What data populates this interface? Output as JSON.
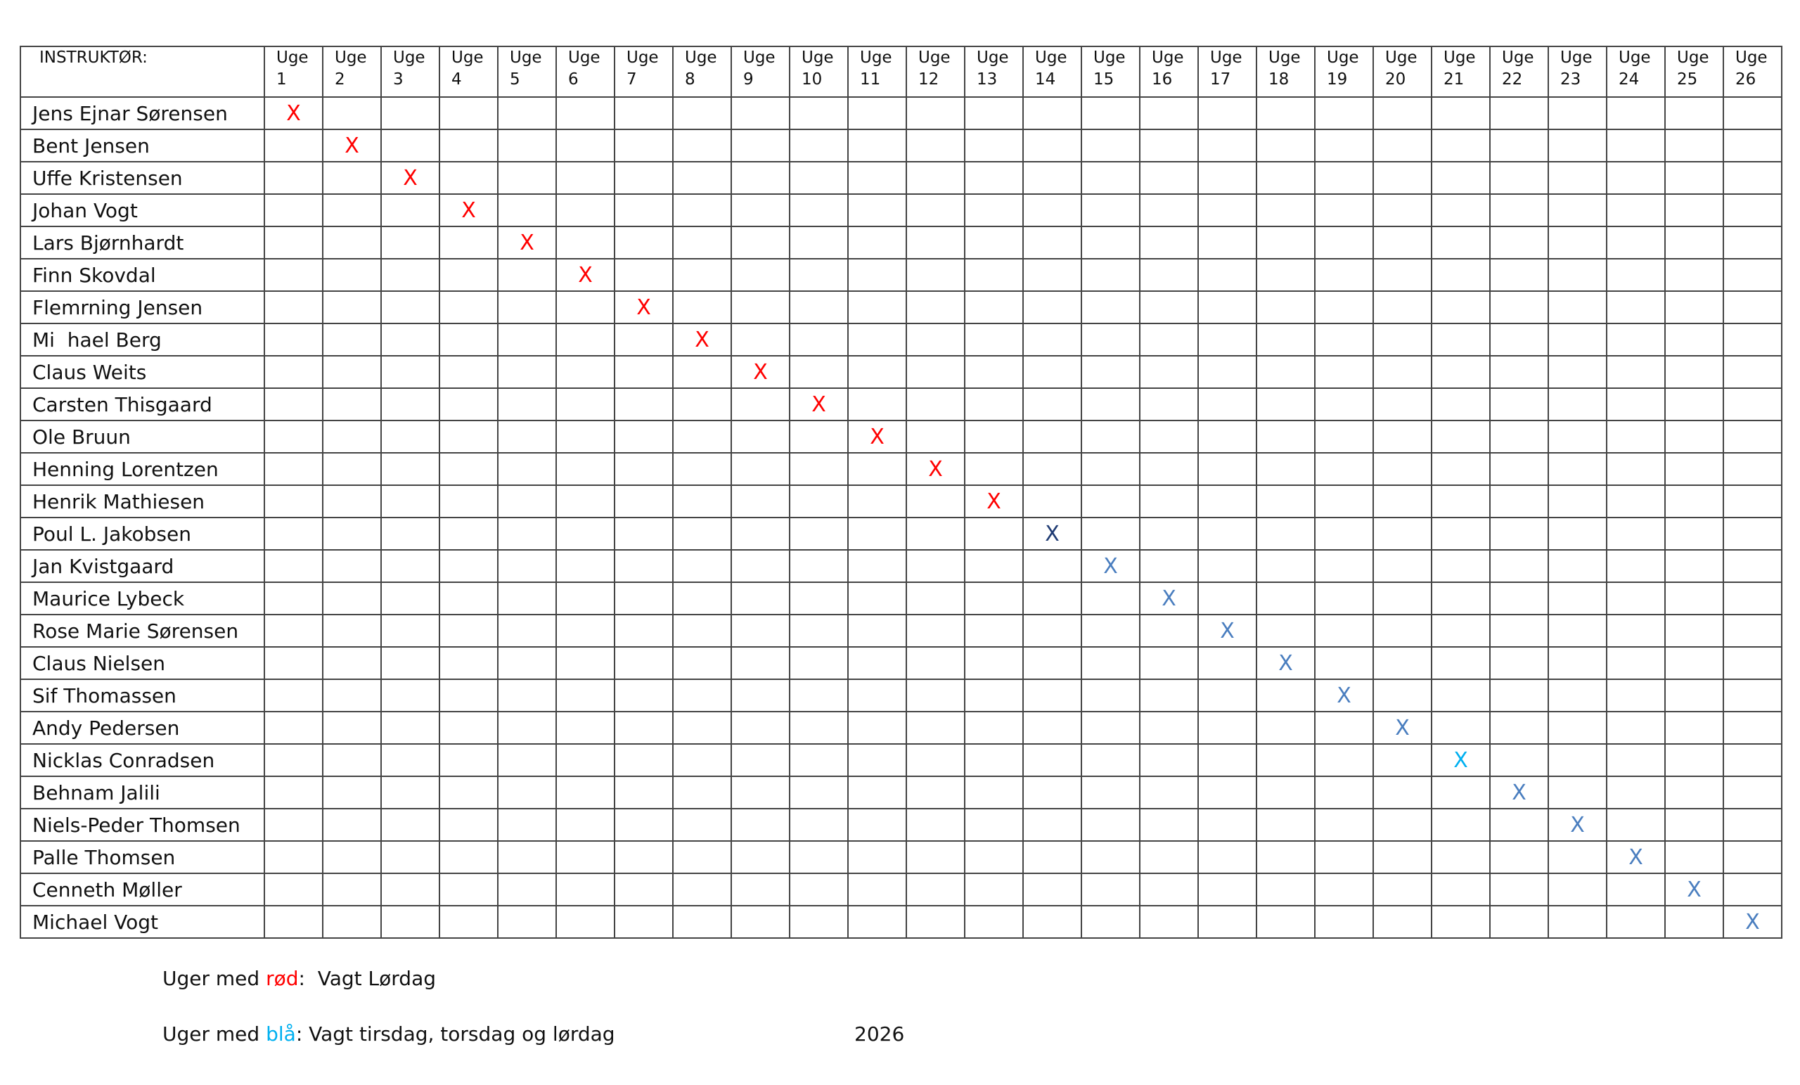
{
  "table": {
    "header": "INSTRUKTØR:",
    "weeks": [
      {
        "label": "Uge",
        "number": 1
      },
      {
        "label": "Uge",
        "number": 2
      },
      {
        "label": "Uge",
        "number": 3
      },
      {
        "label": "Uge",
        "number": 4
      },
      {
        "label": "Uge",
        "number": 5
      },
      {
        "label": "Uge",
        "number": 6
      },
      {
        "label": "Uge",
        "number": 7
      },
      {
        "label": "Uge",
        "number": 8
      },
      {
        "label": "Uge",
        "number": 9
      },
      {
        "label": "Uge",
        "number": 10
      },
      {
        "label": "Uge",
        "number": 11
      },
      {
        "label": "Uge",
        "number": 12
      },
      {
        "label": "Uge",
        "number": 13
      },
      {
        "label": "Uge",
        "number": 14
      },
      {
        "label": "Uge",
        "number": 15
      },
      {
        "label": "Uge",
        "number": 16
      },
      {
        "label": "Uge",
        "number": 17
      },
      {
        "label": "Uge",
        "number": 18
      },
      {
        "label": "Uge",
        "number": 19
      },
      {
        "label": "Uge",
        "number": 20
      },
      {
        "label": "Uge",
        "number": 21
      },
      {
        "label": "Uge",
        "number": 22
      },
      {
        "label": "Uge",
        "number": 23
      },
      {
        "label": "Uge",
        "number": 24
      },
      {
        "label": "Uge",
        "number": 25
      },
      {
        "label": "Uge",
        "number": 26
      }
    ],
    "rows": [
      {
        "name": "Jens Ejnar Sørensen",
        "week": 1,
        "mark": "X",
        "color": "#ff0000"
      },
      {
        "name": "Bent Jensen",
        "week": 2,
        "mark": "X",
        "color": "#ff0000"
      },
      {
        "name": "Uffe Kristensen",
        "week": 3,
        "mark": "X",
        "color": "#ff0000"
      },
      {
        "name": "Johan Vogt",
        "week": 4,
        "mark": "X",
        "color": "#ff0000"
      },
      {
        "name": "Lars Bjørnhardt",
        "week": 5,
        "mark": "X",
        "color": "#ff0000"
      },
      {
        "name": "Finn Skovdal",
        "week": 6,
        "mark": "X",
        "color": "#ff0000"
      },
      {
        "name": "Flemrning Jensen",
        "week": 7,
        "mark": "X",
        "color": "#ff0000"
      },
      {
        "name": "Mi  hael Berg",
        "week": 8,
        "mark": "X",
        "color": "#ff0000"
      },
      {
        "name": "Claus Weits",
        "week": 9,
        "mark": "X",
        "color": "#ff0000"
      },
      {
        "name": "Carsten Thisgaard",
        "week": 10,
        "mark": "X",
        "color": "#ff0000"
      },
      {
        "name": "Ole Bruun",
        "week": 11,
        "mark": "X",
        "color": "#ff0000"
      },
      {
        "name": "Henning Lorentzen",
        "week": 12,
        "mark": "X",
        "color": "#ff0000"
      },
      {
        "name": "Henrik Mathiesen",
        "week": 13,
        "mark": "X",
        "color": "#ff0000"
      },
      {
        "name": "Poul L. Jakobsen",
        "week": 14,
        "mark": "X",
        "color": "#1f3b73"
      },
      {
        "name": "Jan Kvistgaard",
        "week": 15,
        "mark": "X",
        "color": "#4a7ebf"
      },
      {
        "name": "Maurice Lybeck",
        "week": 16,
        "mark": "X",
        "color": "#4a7ebf"
      },
      {
        "name": "Rose Marie Sørensen",
        "week": 17,
        "mark": "X",
        "color": "#4a7ebf"
      },
      {
        "name": "Claus Nielsen",
        "week": 18,
        "mark": "X",
        "color": "#4a7ebf"
      },
      {
        "name": "Sif Thomassen",
        "week": 19,
        "mark": "X",
        "color": "#4a7ebf"
      },
      {
        "name": "Andy Pedersen",
        "week": 20,
        "mark": "X",
        "color": "#4a7ebf"
      },
      {
        "name": "Nicklas Conradsen",
        "week": 21,
        "mark": "X",
        "color": "#00b0f0"
      },
      {
        "name": "Behnam Jalili",
        "week": 22,
        "mark": "X",
        "color": "#4a7ebf"
      },
      {
        "name": "Niels-Peder Thomsen",
        "week": 23,
        "mark": "X",
        "color": "#4a7ebf"
      },
      {
        "name": "Palle Thomsen",
        "week": 24,
        "mark": "X",
        "color": "#4a7ebf"
      },
      {
        "name": "Cenneth Møller",
        "week": 25,
        "mark": "X",
        "color": "#4a7ebf"
      },
      {
        "name": "Michael Vogt",
        "week": 26,
        "mark": "X",
        "color": "#4a7ebf"
      }
    ]
  },
  "legend": [
    {
      "prefix": "Uger med ",
      "color_word": "rød",
      "color": "#ff0000",
      "suffix": ":  Vagt Lørdag"
    },
    {
      "prefix": "Uger med ",
      "color_word": "blå",
      "color": "#00b0f0",
      "suffix": ": Vagt tirsdag, torsdag og lørdag"
    }
  ],
  "year": "2026"
}
